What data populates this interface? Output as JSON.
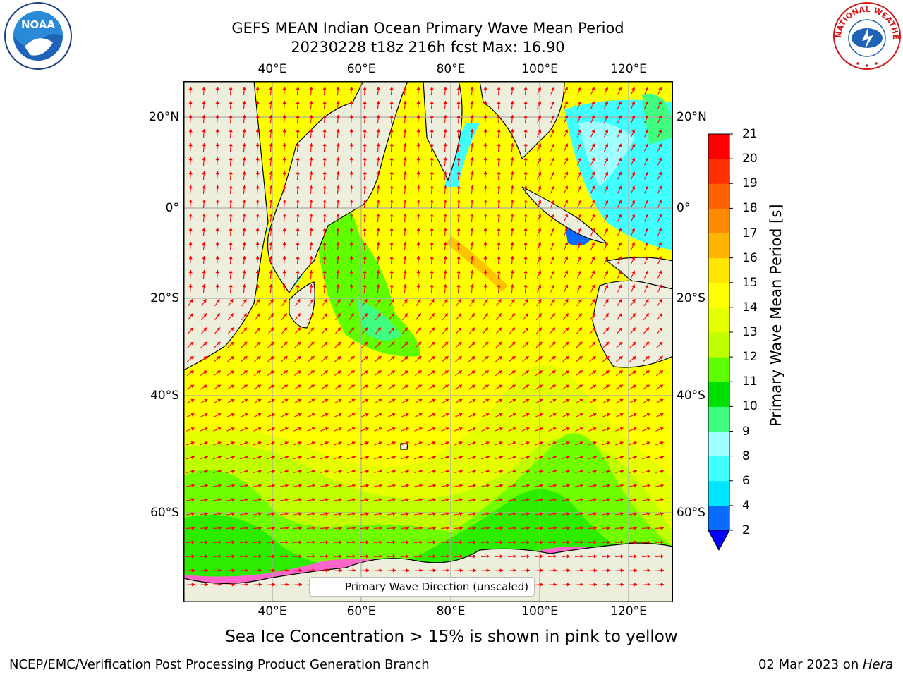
{
  "header": {
    "title_line1": "GEFS MEAN Indian Ocean Primary Wave Mean Period",
    "title_line2": "20230228 t18z 216h fcst   Max: 16.90"
  },
  "logos": {
    "left": "NOAA",
    "right": "NATIONAL WEATHER SERVICE"
  },
  "map": {
    "lon_ticks": [
      "40°E",
      "60°E",
      "80°E",
      "100°E",
      "120°E"
    ],
    "lat_ticks": [
      "20°N",
      "0°",
      "20°S",
      "40°S",
      "60°S"
    ],
    "legend_label": "Primary Wave Direction (unscaled)",
    "ocean_color": "#ffff00",
    "land_color": "#eeeedd",
    "arrow_color": "#ff0000"
  },
  "colorbar": {
    "title": "Primary Wave Mean Period [s]",
    "levels": [
      "2",
      "4",
      "6",
      "8",
      "9",
      "10",
      "11",
      "12",
      "13",
      "14",
      "15",
      "16",
      "17",
      "18",
      "19",
      "20",
      "21"
    ],
    "colors": [
      "#0a6cff",
      "#00e5ff",
      "#40ffff",
      "#a0ffff",
      "#40ff80",
      "#00e000",
      "#60ff00",
      "#c0ff00",
      "#e6ff00",
      "#ffff00",
      "#ffe600",
      "#ffb400",
      "#ff8c00",
      "#ff6000",
      "#ff3000",
      "#ff0000"
    ],
    "under_color": "#0000ff"
  },
  "footer": {
    "ice_note": "Sea Ice Concentration > 15% is shown in pink to yellow",
    "credit_left": "NCEP/EMC/Verification Post Processing Product Generation Branch",
    "credit_right_date": "02 Mar 2023 on ",
    "credit_right_host": "Hera"
  }
}
